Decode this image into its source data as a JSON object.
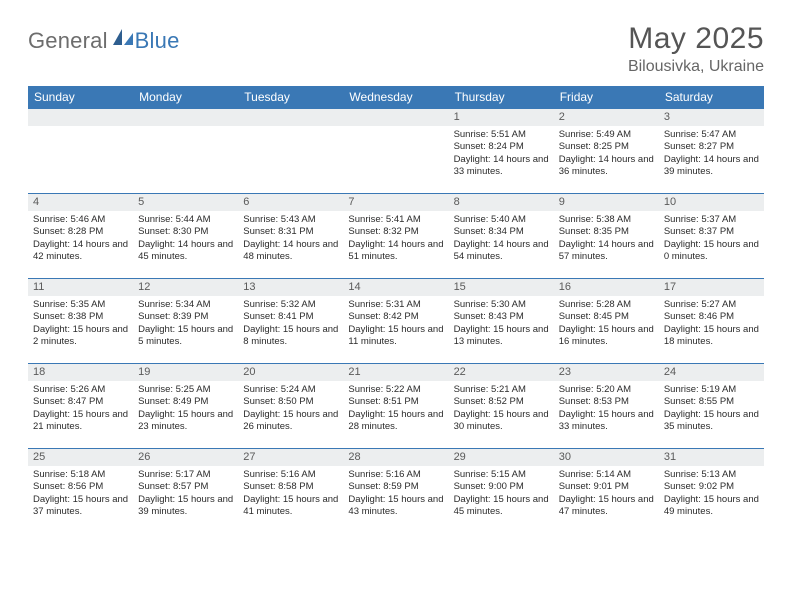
{
  "brand": {
    "part1": "General",
    "part2": "Blue"
  },
  "title": "May 2025",
  "location": "Bilousivka, Ukraine",
  "colors": {
    "header_bar": "#3a78b5",
    "daynum_bg": "#eceeef",
    "page_bg": "#ffffff",
    "text": "#333333",
    "logo_gray": "#6d6d6d",
    "logo_blue": "#3a78b5"
  },
  "day_headers": [
    "Sunday",
    "Monday",
    "Tuesday",
    "Wednesday",
    "Thursday",
    "Friday",
    "Saturday"
  ],
  "weeks": [
    [
      {
        "n": "",
        "lines": []
      },
      {
        "n": "",
        "lines": []
      },
      {
        "n": "",
        "lines": []
      },
      {
        "n": "",
        "lines": []
      },
      {
        "n": "1",
        "lines": [
          "Sunrise: 5:51 AM",
          "Sunset: 8:24 PM",
          "Daylight: 14 hours and 33 minutes."
        ]
      },
      {
        "n": "2",
        "lines": [
          "Sunrise: 5:49 AM",
          "Sunset: 8:25 PM",
          "Daylight: 14 hours and 36 minutes."
        ]
      },
      {
        "n": "3",
        "lines": [
          "Sunrise: 5:47 AM",
          "Sunset: 8:27 PM",
          "Daylight: 14 hours and 39 minutes."
        ]
      }
    ],
    [
      {
        "n": "4",
        "lines": [
          "Sunrise: 5:46 AM",
          "Sunset: 8:28 PM",
          "Daylight: 14 hours and 42 minutes."
        ]
      },
      {
        "n": "5",
        "lines": [
          "Sunrise: 5:44 AM",
          "Sunset: 8:30 PM",
          "Daylight: 14 hours and 45 minutes."
        ]
      },
      {
        "n": "6",
        "lines": [
          "Sunrise: 5:43 AM",
          "Sunset: 8:31 PM",
          "Daylight: 14 hours and 48 minutes."
        ]
      },
      {
        "n": "7",
        "lines": [
          "Sunrise: 5:41 AM",
          "Sunset: 8:32 PM",
          "Daylight: 14 hours and 51 minutes."
        ]
      },
      {
        "n": "8",
        "lines": [
          "Sunrise: 5:40 AM",
          "Sunset: 8:34 PM",
          "Daylight: 14 hours and 54 minutes."
        ]
      },
      {
        "n": "9",
        "lines": [
          "Sunrise: 5:38 AM",
          "Sunset: 8:35 PM",
          "Daylight: 14 hours and 57 minutes."
        ]
      },
      {
        "n": "10",
        "lines": [
          "Sunrise: 5:37 AM",
          "Sunset: 8:37 PM",
          "Daylight: 15 hours and 0 minutes."
        ]
      }
    ],
    [
      {
        "n": "11",
        "lines": [
          "Sunrise: 5:35 AM",
          "Sunset: 8:38 PM",
          "Daylight: 15 hours and 2 minutes."
        ]
      },
      {
        "n": "12",
        "lines": [
          "Sunrise: 5:34 AM",
          "Sunset: 8:39 PM",
          "Daylight: 15 hours and 5 minutes."
        ]
      },
      {
        "n": "13",
        "lines": [
          "Sunrise: 5:32 AM",
          "Sunset: 8:41 PM",
          "Daylight: 15 hours and 8 minutes."
        ]
      },
      {
        "n": "14",
        "lines": [
          "Sunrise: 5:31 AM",
          "Sunset: 8:42 PM",
          "Daylight: 15 hours and 11 minutes."
        ]
      },
      {
        "n": "15",
        "lines": [
          "Sunrise: 5:30 AM",
          "Sunset: 8:43 PM",
          "Daylight: 15 hours and 13 minutes."
        ]
      },
      {
        "n": "16",
        "lines": [
          "Sunrise: 5:28 AM",
          "Sunset: 8:45 PM",
          "Daylight: 15 hours and 16 minutes."
        ]
      },
      {
        "n": "17",
        "lines": [
          "Sunrise: 5:27 AM",
          "Sunset: 8:46 PM",
          "Daylight: 15 hours and 18 minutes."
        ]
      }
    ],
    [
      {
        "n": "18",
        "lines": [
          "Sunrise: 5:26 AM",
          "Sunset: 8:47 PM",
          "Daylight: 15 hours and 21 minutes."
        ]
      },
      {
        "n": "19",
        "lines": [
          "Sunrise: 5:25 AM",
          "Sunset: 8:49 PM",
          "Daylight: 15 hours and 23 minutes."
        ]
      },
      {
        "n": "20",
        "lines": [
          "Sunrise: 5:24 AM",
          "Sunset: 8:50 PM",
          "Daylight: 15 hours and 26 minutes."
        ]
      },
      {
        "n": "21",
        "lines": [
          "Sunrise: 5:22 AM",
          "Sunset: 8:51 PM",
          "Daylight: 15 hours and 28 minutes."
        ]
      },
      {
        "n": "22",
        "lines": [
          "Sunrise: 5:21 AM",
          "Sunset: 8:52 PM",
          "Daylight: 15 hours and 30 minutes."
        ]
      },
      {
        "n": "23",
        "lines": [
          "Sunrise: 5:20 AM",
          "Sunset: 8:53 PM",
          "Daylight: 15 hours and 33 minutes."
        ]
      },
      {
        "n": "24",
        "lines": [
          "Sunrise: 5:19 AM",
          "Sunset: 8:55 PM",
          "Daylight: 15 hours and 35 minutes."
        ]
      }
    ],
    [
      {
        "n": "25",
        "lines": [
          "Sunrise: 5:18 AM",
          "Sunset: 8:56 PM",
          "Daylight: 15 hours and 37 minutes."
        ]
      },
      {
        "n": "26",
        "lines": [
          "Sunrise: 5:17 AM",
          "Sunset: 8:57 PM",
          "Daylight: 15 hours and 39 minutes."
        ]
      },
      {
        "n": "27",
        "lines": [
          "Sunrise: 5:16 AM",
          "Sunset: 8:58 PM",
          "Daylight: 15 hours and 41 minutes."
        ]
      },
      {
        "n": "28",
        "lines": [
          "Sunrise: 5:16 AM",
          "Sunset: 8:59 PM",
          "Daylight: 15 hours and 43 minutes."
        ]
      },
      {
        "n": "29",
        "lines": [
          "Sunrise: 5:15 AM",
          "Sunset: 9:00 PM",
          "Daylight: 15 hours and 45 minutes."
        ]
      },
      {
        "n": "30",
        "lines": [
          "Sunrise: 5:14 AM",
          "Sunset: 9:01 PM",
          "Daylight: 15 hours and 47 minutes."
        ]
      },
      {
        "n": "31",
        "lines": [
          "Sunrise: 5:13 AM",
          "Sunset: 9:02 PM",
          "Daylight: 15 hours and 49 minutes."
        ]
      }
    ]
  ]
}
